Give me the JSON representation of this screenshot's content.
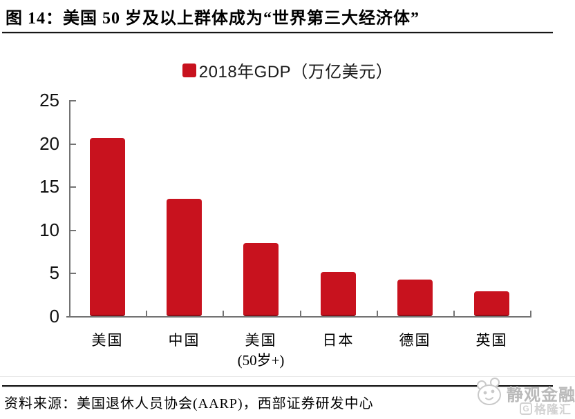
{
  "figure": {
    "title": "图 14：美国 50 岁及以上群体成为“世界第三大经济体”",
    "source": "资料来源：美国退休人员协会(AARP)，西部证券研发中心"
  },
  "chart_data": {
    "type": "bar",
    "legend": "2018年GDP（万亿美元）",
    "categories": [
      {
        "label": "美国",
        "sublabel": ""
      },
      {
        "label": "中国",
        "sublabel": ""
      },
      {
        "label": "美国",
        "sublabel": "(50岁+)"
      },
      {
        "label": "日本",
        "sublabel": ""
      },
      {
        "label": "德国",
        "sublabel": ""
      },
      {
        "label": "英国",
        "sublabel": ""
      }
    ],
    "values": [
      20.6,
      13.6,
      8.5,
      5.1,
      4.2,
      2.9
    ],
    "ylim": [
      0,
      25
    ],
    "yticks": [
      0,
      5,
      10,
      15,
      20,
      25
    ],
    "grid": false,
    "legend_position": "top-center",
    "colors": {
      "bar": "#C8121E",
      "bar_edge": "#8d0d16",
      "axis": "#737373",
      "text": "#000000"
    }
  },
  "watermark": {
    "brand": "静观金融",
    "logo_g": "G",
    "logo_text": "格隆汇",
    "color": "#b9b9b9"
  }
}
